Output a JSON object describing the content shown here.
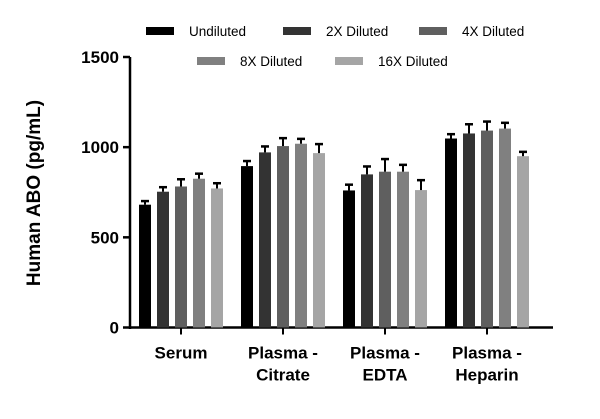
{
  "chart_data": {
    "type": "bar",
    "title": "",
    "xlabel": "",
    "ylabel": "Human ABO (pg/mL)",
    "ylim": [
      0,
      1500
    ],
    "yticks": [
      0,
      500,
      1000,
      1500
    ],
    "grid": false,
    "legend_position": "top",
    "categories": [
      [
        "Serum"
      ],
      [
        "Plasma -",
        "Citrate"
      ],
      [
        "Plasma -",
        "EDTA"
      ],
      [
        "Plasma -",
        "Heparin"
      ]
    ],
    "series": [
      {
        "name": "Undiluted",
        "color": "#000000",
        "values": [
          681,
          895,
          760,
          1048
        ],
        "errors": [
          20,
          28,
          32,
          24
        ]
      },
      {
        "name": "2X Diluted",
        "color": "#333333",
        "values": [
          753,
          971,
          849,
          1076
        ],
        "errors": [
          25,
          33,
          44,
          51
        ]
      },
      {
        "name": "4X Diluted",
        "color": "#5f5f5f",
        "values": [
          782,
          1006,
          864,
          1092
        ],
        "errors": [
          40,
          44,
          70,
          50
        ]
      },
      {
        "name": "8X Diluted",
        "color": "#808080",
        "values": [
          825,
          1019,
          864,
          1103
        ],
        "errors": [
          28,
          27,
          38,
          32
        ]
      },
      {
        "name": "16X Diluted",
        "color": "#a5a5a5",
        "values": [
          771,
          967,
          762,
          950
        ],
        "errors": [
          29,
          50,
          55,
          24
        ]
      }
    ]
  }
}
